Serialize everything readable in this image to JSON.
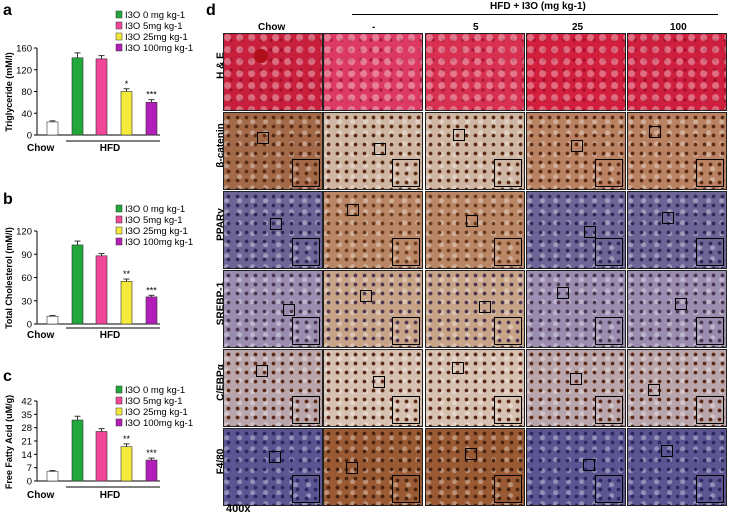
{
  "colors": {
    "chow": "#ffffff",
    "i3o0": "#22a83a",
    "i3o5": "#f0479a",
    "i3o25": "#f5ea3c",
    "i3o100": "#b21fb8"
  },
  "panels": {
    "a": "a",
    "b": "b",
    "c": "c",
    "d": "d"
  },
  "chart_data": [
    {
      "type": "bar",
      "panel": "a",
      "ylabel": "Triglyceride (mM/l)",
      "ylim": [
        0,
        160
      ],
      "yticks": [
        "0",
        "40",
        "80",
        "120",
        "160"
      ],
      "yticks_values": [
        0,
        40,
        80,
        120,
        160
      ],
      "categories": [
        "Chow",
        "I3O 0 mg kg-1",
        "I3O 5mg kg-1",
        "I3O 25mg kg-1",
        "I3O 100mg kg-1"
      ],
      "values": [
        24,
        142,
        140,
        80,
        60
      ],
      "errors": [
        2,
        9,
        6,
        5,
        5
      ],
      "significance": [
        "",
        "",
        "",
        "*",
        "***"
      ],
      "legend": [
        "I3O 0 mg kg-1",
        "I3O 5mg kg-1",
        "I3O 25mg kg-1",
        "I3O 100mg kg-1"
      ],
      "xgroups": [
        "Chow",
        "HFD"
      ]
    },
    {
      "type": "bar",
      "panel": "b",
      "ylabel": "Total Cholesterol (mM/l)",
      "ylim": [
        0,
        120
      ],
      "yticks": [
        "0",
        "30",
        "60",
        "90",
        "120"
      ],
      "yticks_values": [
        0,
        30,
        60,
        90,
        120
      ],
      "categories": [
        "Chow",
        "I3O 0 mg kg-1",
        "I3O 5mg kg-1",
        "I3O 25mg kg-1",
        "I3O 100mg kg-1"
      ],
      "values": [
        10,
        102,
        88,
        55,
        35
      ],
      "errors": [
        1,
        5,
        3,
        3,
        2
      ],
      "significance": [
        "",
        "",
        "",
        "**",
        "***"
      ],
      "legend": [
        "I3O 0 mg kg-1",
        "I3O 5mg kg-1",
        "I3O 25mg kg-1",
        "I3O 100mg kg-1"
      ],
      "xgroups": [
        "Chow",
        "HFD"
      ]
    },
    {
      "type": "bar",
      "panel": "c",
      "ylabel": "Free Fatty Acid (uM/g)",
      "ylim": [
        0,
        42
      ],
      "yticks": [
        "0",
        "7",
        "14",
        "21",
        "28",
        "35",
        "42"
      ],
      "yticks_values": [
        0,
        7,
        14,
        21,
        28,
        35,
        42
      ],
      "categories": [
        "Chow",
        "I3O 0 mg kg-1",
        "I3O 5mg kg-1",
        "I3O 25mg kg-1",
        "I3O 100mg kg-1"
      ],
      "values": [
        5,
        32,
        26,
        18,
        11
      ],
      "errors": [
        0.5,
        2,
        1.5,
        1.5,
        1
      ],
      "significance": [
        "",
        "",
        "",
        "**",
        "***"
      ],
      "legend": [
        "I3O 0 mg kg-1",
        "I3O 5mg kg-1",
        "I3O 25mg kg-1",
        "I3O 100mg kg-1"
      ],
      "xgroups": [
        "Chow",
        "HFD"
      ]
    }
  ],
  "micrographs": {
    "header_group": "HFD + I3O (mg kg-1)",
    "columns": [
      "Chow",
      "-",
      "5",
      "25",
      "100"
    ],
    "rows": [
      "H & E",
      "β-catenin",
      "PPARγ",
      "SREBP-1",
      "C/EBPα",
      "F4/80"
    ],
    "magnification": "400x",
    "stains": {
      "he": "#d2233f",
      "ihc_brown": "#8a4a22",
      "ihc_light": "#b98b6f",
      "hematoxylin": "#5a4f86"
    }
  }
}
